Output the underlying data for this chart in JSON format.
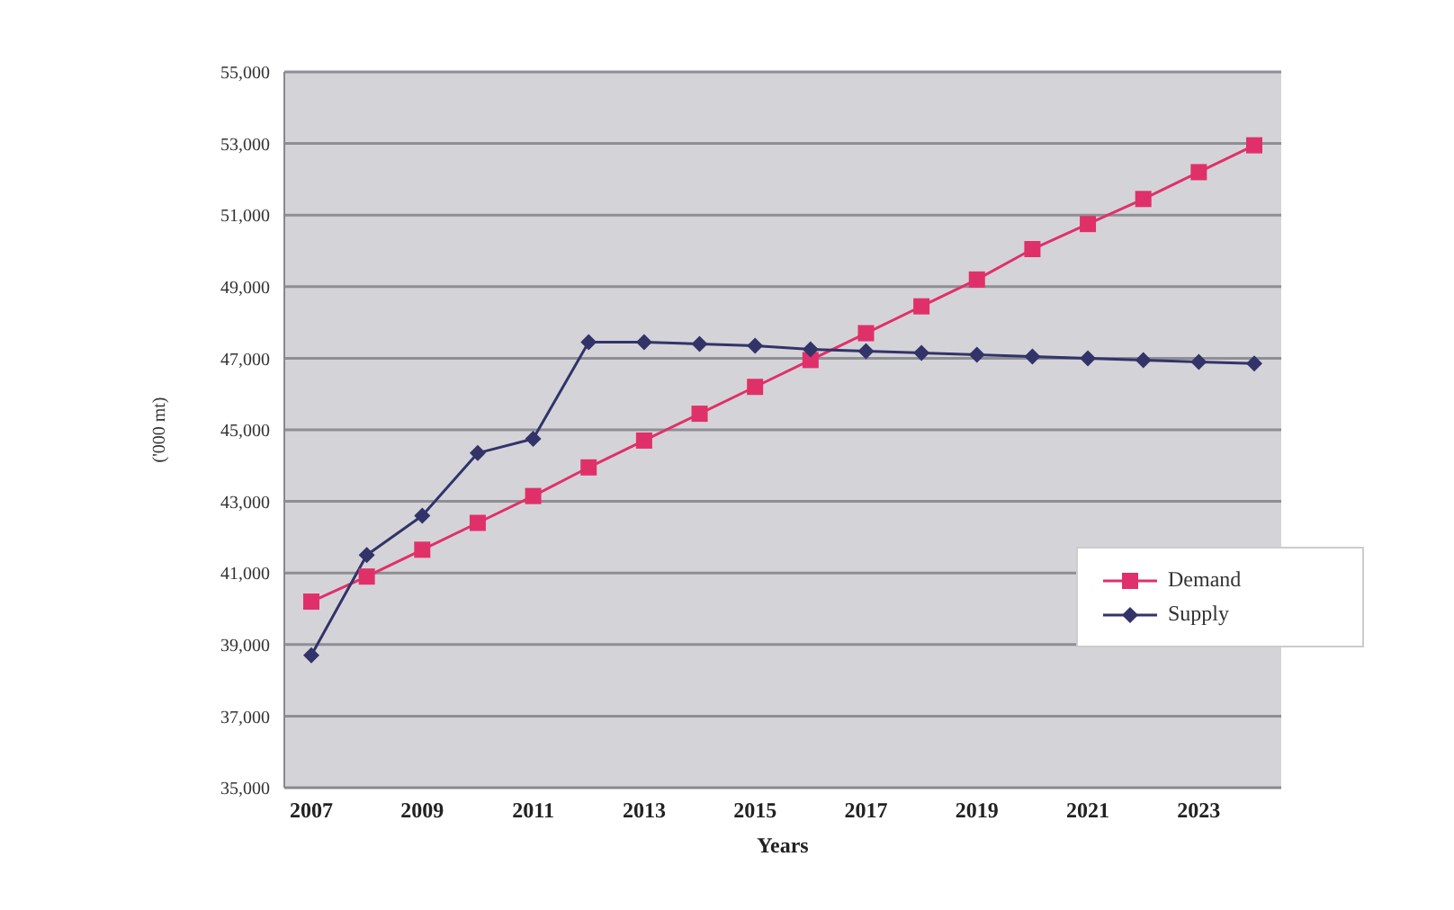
{
  "chart_data": {
    "type": "line",
    "xlabel": "Years",
    "ylabel": "('000 mt)",
    "categories": [
      "2007",
      null,
      "2009",
      null,
      "2011",
      null,
      "2013",
      null,
      "2015",
      null,
      "2017",
      null,
      "2019",
      null,
      "2021",
      null,
      "2023",
      null
    ],
    "series": [
      {
        "name": "Demand",
        "color": "#e0306a",
        "marker": "square",
        "values": [
          40200,
          40900,
          41650,
          42400,
          43150,
          43950,
          44700,
          45450,
          46200,
          46950,
          47700,
          48450,
          49200,
          50050,
          50750,
          51450,
          52200,
          52950
        ]
      },
      {
        "name": "Supply",
        "color": "#33336a",
        "marker": "diamond",
        "values": [
          38700,
          41500,
          42600,
          44350,
          44750,
          47450,
          47450,
          47400,
          47350,
          47250,
          47200,
          47150,
          47100,
          47050,
          47000,
          46950,
          46900,
          46850
        ]
      }
    ],
    "ylim": [
      35000,
      55000
    ],
    "yticks": [
      {
        "value": 35000,
        "label": "35,000"
      },
      {
        "value": 37000,
        "label": "37,000"
      },
      {
        "value": 39000,
        "label": "39,000"
      },
      {
        "value": 41000,
        "label": "41,000"
      },
      {
        "value": 43000,
        "label": "43,000"
      },
      {
        "value": 45000,
        "label": "45,000"
      },
      {
        "value": 47000,
        "label": "47,000"
      },
      {
        "value": 49000,
        "label": "49,000"
      },
      {
        "value": 51000,
        "label": "51,000"
      },
      {
        "value": 53000,
        "label": "53,000"
      },
      {
        "value": 55000,
        "label": "55,000"
      }
    ],
    "grid": "y",
    "legend": "right",
    "line_style": "solid"
  }
}
